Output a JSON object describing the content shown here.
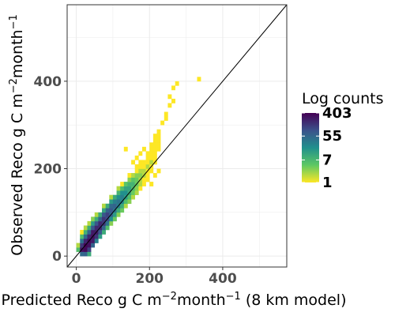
{
  "chart_data": {
    "type": "heatmap",
    "title": "",
    "xlabel": "Predicted Reco g C m^-2 month^-1 (8 km model)",
    "ylabel": "Observed Reco g C m^-2 month^-1",
    "xlim": [
      -25,
      575
    ],
    "ylim": [
      -25,
      575
    ],
    "xticks": [
      0,
      200,
      400
    ],
    "yticks": [
      0,
      200,
      400
    ],
    "grid": true,
    "identity_line": true,
    "bin_width": 10,
    "legend": {
      "title": "Log counts",
      "placement": "right",
      "labels": [
        "403",
        "55",
        "7",
        "1"
      ],
      "values": [
        403,
        55,
        7,
        1
      ],
      "colors": [
        "#440154",
        "#3b528b",
        "#21908d",
        "#5dc863",
        "#fde725"
      ]
    },
    "bins": [
      [
        0,
        10,
        6
      ],
      [
        0,
        20,
        2
      ],
      [
        10,
        0,
        50
      ],
      [
        10,
        10,
        300
      ],
      [
        10,
        20,
        150
      ],
      [
        10,
        30,
        40
      ],
      [
        10,
        40,
        6
      ],
      [
        10,
        50,
        1
      ],
      [
        20,
        0,
        60
      ],
      [
        20,
        10,
        350
      ],
      [
        20,
        20,
        380
      ],
      [
        20,
        30,
        200
      ],
      [
        20,
        40,
        50
      ],
      [
        20,
        50,
        8
      ],
      [
        20,
        60,
        2
      ],
      [
        30,
        0,
        10
      ],
      [
        30,
        10,
        120
      ],
      [
        30,
        20,
        300
      ],
      [
        30,
        30,
        350
      ],
      [
        30,
        40,
        200
      ],
      [
        30,
        50,
        60
      ],
      [
        30,
        60,
        10
      ],
      [
        30,
        70,
        2
      ],
      [
        40,
        20,
        60
      ],
      [
        40,
        30,
        250
      ],
      [
        40,
        40,
        300
      ],
      [
        40,
        50,
        250
      ],
      [
        40,
        60,
        80
      ],
      [
        40,
        70,
        15
      ],
      [
        40,
        80,
        3
      ],
      [
        50,
        30,
        30
      ],
      [
        50,
        40,
        150
      ],
      [
        50,
        50,
        250
      ],
      [
        50,
        60,
        200
      ],
      [
        50,
        70,
        80
      ],
      [
        50,
        80,
        10
      ],
      [
        50,
        90,
        2
      ],
      [
        60,
        40,
        15
      ],
      [
        60,
        50,
        80
      ],
      [
        60,
        60,
        200
      ],
      [
        60,
        70,
        200
      ],
      [
        60,
        80,
        60
      ],
      [
        60,
        90,
        10
      ],
      [
        70,
        50,
        10
      ],
      [
        70,
        60,
        60
      ],
      [
        70,
        70,
        150
      ],
      [
        70,
        80,
        150
      ],
      [
        70,
        90,
        80
      ],
      [
        70,
        100,
        12
      ],
      [
        70,
        110,
        2
      ],
      [
        80,
        60,
        6
      ],
      [
        80,
        70,
        40
      ],
      [
        80,
        80,
        100
      ],
      [
        80,
        90,
        120
      ],
      [
        80,
        100,
        60
      ],
      [
        80,
        110,
        10
      ],
      [
        90,
        70,
        3
      ],
      [
        90,
        80,
        20
      ],
      [
        90,
        90,
        60
      ],
      [
        90,
        100,
        80
      ],
      [
        90,
        110,
        50
      ],
      [
        90,
        120,
        15
      ],
      [
        90,
        130,
        2
      ],
      [
        100,
        80,
        4
      ],
      [
        100,
        90,
        15
      ],
      [
        100,
        100,
        40
      ],
      [
        100,
        110,
        60
      ],
      [
        100,
        120,
        30
      ],
      [
        100,
        130,
        10
      ],
      [
        110,
        90,
        3
      ],
      [
        110,
        100,
        10
      ],
      [
        110,
        110,
        30
      ],
      [
        110,
        120,
        40
      ],
      [
        110,
        130,
        20
      ],
      [
        110,
        140,
        8
      ],
      [
        110,
        150,
        2
      ],
      [
        120,
        100,
        4
      ],
      [
        120,
        110,
        10
      ],
      [
        120,
        120,
        25
      ],
      [
        120,
        130,
        30
      ],
      [
        120,
        140,
        20
      ],
      [
        120,
        150,
        6
      ],
      [
        120,
        160,
        1
      ],
      [
        130,
        110,
        2
      ],
      [
        130,
        120,
        6
      ],
      [
        130,
        130,
        15
      ],
      [
        130,
        140,
        20
      ],
      [
        130,
        150,
        12
      ],
      [
        130,
        160,
        5
      ],
      [
        140,
        120,
        3
      ],
      [
        140,
        130,
        6
      ],
      [
        140,
        140,
        10
      ],
      [
        140,
        150,
        12
      ],
      [
        140,
        160,
        8
      ],
      [
        140,
        170,
        3
      ],
      [
        140,
        180,
        1
      ],
      [
        150,
        130,
        2
      ],
      [
        150,
        140,
        4
      ],
      [
        150,
        150,
        6
      ],
      [
        150,
        160,
        8
      ],
      [
        150,
        170,
        5
      ],
      [
        150,
        180,
        2
      ],
      [
        160,
        140,
        2
      ],
      [
        160,
        150,
        3
      ],
      [
        160,
        160,
        4
      ],
      [
        160,
        170,
        4
      ],
      [
        160,
        180,
        3
      ],
      [
        160,
        190,
        1
      ],
      [
        160,
        200,
        1
      ],
      [
        170,
        150,
        1
      ],
      [
        170,
        160,
        2
      ],
      [
        170,
        170,
        2
      ],
      [
        170,
        180,
        3
      ],
      [
        170,
        190,
        2
      ],
      [
        170,
        200,
        1
      ],
      [
        170,
        210,
        1
      ],
      [
        180,
        160,
        1
      ],
      [
        180,
        170,
        1
      ],
      [
        180,
        180,
        2
      ],
      [
        180,
        190,
        2
      ],
      [
        180,
        200,
        1
      ],
      [
        180,
        210,
        1
      ],
      [
        190,
        180,
        1
      ],
      [
        190,
        190,
        1
      ],
      [
        190,
        200,
        2
      ],
      [
        190,
        210,
        1
      ],
      [
        190,
        220,
        1
      ],
      [
        190,
        230,
        1
      ],
      [
        200,
        190,
        1
      ],
      [
        200,
        200,
        1
      ],
      [
        200,
        210,
        2
      ],
      [
        200,
        220,
        1
      ],
      [
        200,
        230,
        1
      ],
      [
        200,
        240,
        1
      ],
      [
        200,
        250,
        1
      ],
      [
        210,
        210,
        1
      ],
      [
        210,
        220,
        1
      ],
      [
        210,
        230,
        1
      ],
      [
        210,
        240,
        1
      ],
      [
        210,
        250,
        1
      ],
      [
        210,
        260,
        1
      ],
      [
        210,
        270,
        1
      ],
      [
        220,
        240,
        1
      ],
      [
        220,
        250,
        1
      ],
      [
        220,
        260,
        1
      ],
      [
        220,
        270,
        1
      ],
      [
        220,
        280,
        1
      ],
      [
        130,
        240,
        1
      ],
      [
        150,
        210,
        1
      ],
      [
        160,
        220,
        1
      ],
      [
        170,
        230,
        1
      ],
      [
        180,
        240,
        1
      ],
      [
        190,
        170,
        1
      ],
      [
        200,
        160,
        1
      ],
      [
        210,
        180,
        1
      ],
      [
        220,
        190,
        1
      ],
      [
        240,
        320,
        1
      ],
      [
        250,
        360,
        1
      ],
      [
        260,
        380,
        1
      ],
      [
        270,
        390,
        1
      ],
      [
        330,
        400,
        1
      ],
      [
        250,
        340,
        1
      ],
      [
        260,
        350,
        1
      ],
      [
        230,
        300,
        1
      ],
      [
        240,
        310,
        1
      ]
    ]
  }
}
